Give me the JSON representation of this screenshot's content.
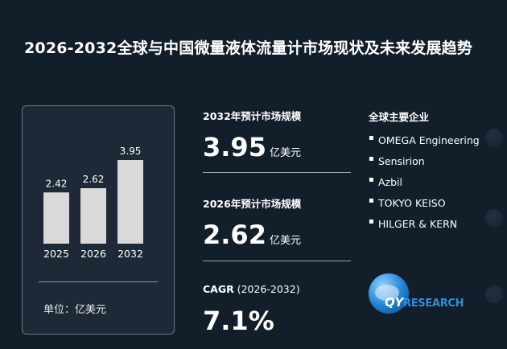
{
  "title": "2026-2032全球与中国微量液体流量计市场现状及未来发展趋势",
  "chart_data": {
    "type": "bar",
    "categories": [
      "2025",
      "2026",
      "2032"
    ],
    "values": [
      2.42,
      2.62,
      3.95
    ],
    "value_labels": [
      "2.42",
      "2.62",
      "3.95"
    ],
    "unit_label": "单位：亿美元",
    "ylim": [
      0,
      3.95
    ],
    "grid": false,
    "bar_color": "#d9d9d9"
  },
  "stats": {
    "market_2032_label": "2032年预计市场规模",
    "market_2032_value": "3.95",
    "market_2032_unit": "亿美元",
    "market_2026_label": "2026年预计市场规模",
    "market_2026_value": "2.62",
    "market_2026_unit": "亿美元",
    "cagr_label": "CAGR",
    "cagr_period": " (2026-2032)",
    "cagr_value": "7.1%"
  },
  "companies": {
    "title": "全球主要企业",
    "items": [
      "OMEGA Engineering",
      "Sensirion",
      "Azbil",
      "TOKYO KEISO",
      "HILGER & KERN"
    ]
  },
  "logo": {
    "brand": "QY",
    "tagline": "RESEARCH"
  }
}
